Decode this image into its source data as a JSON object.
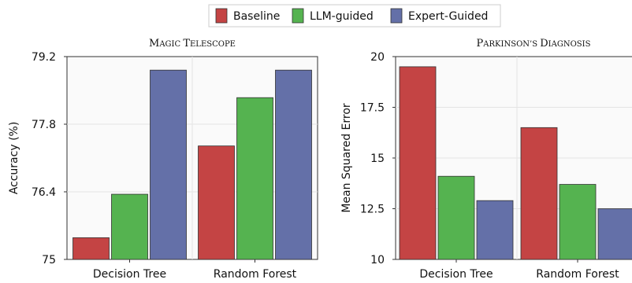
{
  "legend": [
    {
      "label": "Baseline",
      "color": "#c44444"
    },
    {
      "label": "LLM-guided",
      "color": "#55b350"
    },
    {
      "label": "Expert-Guided",
      "color": "#6470a8"
    }
  ],
  "chart_data": [
    {
      "type": "bar",
      "title": "Magic Telescope",
      "title_parts": [
        {
          "big": "M",
          "small": "AGIC "
        },
        {
          "big": "T",
          "small": "ELESCOPE"
        }
      ],
      "xlabel": "",
      "ylabel": "Accuracy (%)",
      "categories": [
        "Decision Tree",
        "Random Forest"
      ],
      "ylim": [
        75,
        79.2
      ],
      "yticks": [
        75,
        76.4,
        77.8,
        79.2
      ],
      "ytick_labels": [
        "75",
        "76.4",
        "77.8",
        "79.2"
      ],
      "grid": true,
      "series": [
        {
          "name": "Baseline",
          "values": [
            75.45,
            77.35
          ]
        },
        {
          "name": "LLM-guided",
          "values": [
            76.35,
            78.35
          ]
        },
        {
          "name": "Expert-Guided",
          "values": [
            78.92,
            78.92
          ]
        }
      ]
    },
    {
      "type": "bar",
      "title": "Parkinson’s Diagnosis",
      "title_parts": [
        {
          "big": "P",
          "small": "ARKINSON’S "
        },
        {
          "big": "D",
          "small": "IAGNOSIS"
        }
      ],
      "xlabel": "",
      "ylabel": "Mean Squared Error",
      "categories": [
        "Decision Tree",
        "Random Forest"
      ],
      "ylim": [
        10,
        20
      ],
      "yticks": [
        10,
        12.5,
        15,
        17.5,
        20
      ],
      "ytick_labels": [
        "10",
        "12.5",
        "15",
        "17.5",
        "20"
      ],
      "grid": true,
      "series": [
        {
          "name": "Baseline",
          "values": [
            19.5,
            16.5
          ]
        },
        {
          "name": "LLM-guided",
          "values": [
            14.1,
            13.7
          ]
        },
        {
          "name": "Expert-Guided",
          "values": [
            12.9,
            12.5
          ]
        }
      ]
    }
  ]
}
